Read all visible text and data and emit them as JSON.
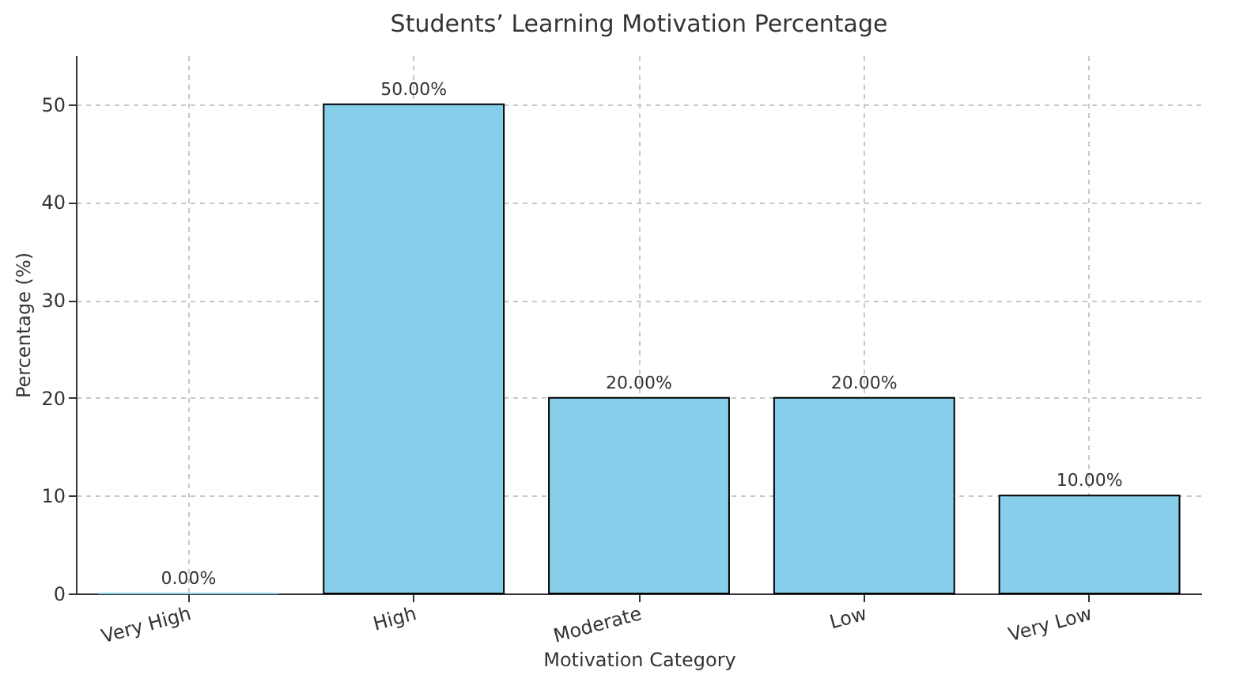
{
  "chart_data": {
    "type": "bar",
    "title": "Students’ Learning Motivation Percentage",
    "xlabel": "Motivation Category",
    "ylabel": "Percentage (%)",
    "categories": [
      "Very High",
      "High",
      "Moderate",
      "Low",
      "Very Low"
    ],
    "values": [
      0,
      50,
      20,
      20,
      10
    ],
    "value_labels": [
      "0.00%",
      "50.00%",
      "20.00%",
      "20.00%",
      "10.00%"
    ],
    "color": "#87ceeb",
    "ylim": [
      0,
      55
    ],
    "yticks": [
      0,
      10,
      20,
      30,
      40,
      50
    ],
    "grid": true
  }
}
